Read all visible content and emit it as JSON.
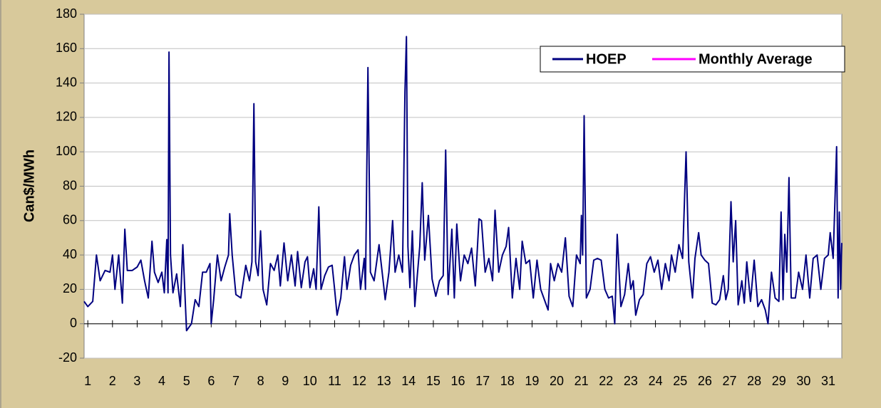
{
  "chart_data": {
    "type": "line",
    "y_label": "Can$/MWh",
    "x": [
      0.85,
      1.0,
      1.2,
      1.35,
      1.5,
      1.7,
      1.9,
      2.0,
      2.1,
      2.25,
      2.4,
      2.5,
      2.6,
      2.8,
      3.0,
      3.15,
      3.3,
      3.45,
      3.6,
      3.7,
      3.85,
      4.0,
      4.1,
      4.2,
      4.25,
      4.29,
      4.35,
      4.45,
      4.6,
      4.75,
      4.85,
      5.0,
      5.2,
      5.35,
      5.5,
      5.65,
      5.8,
      5.95,
      6.0,
      6.1,
      6.25,
      6.4,
      6.55,
      6.7,
      6.75,
      6.85,
      7.0,
      7.2,
      7.4,
      7.55,
      7.65,
      7.73,
      7.8,
      7.9,
      8.0,
      8.1,
      8.25,
      8.4,
      8.55,
      8.7,
      8.8,
      8.95,
      9.1,
      9.25,
      9.4,
      9.5,
      9.65,
      9.8,
      9.9,
      10.0,
      10.15,
      10.25,
      10.36,
      10.45,
      10.6,
      10.75,
      10.9,
      11.0,
      11.1,
      11.25,
      11.4,
      11.5,
      11.65,
      11.8,
      11.95,
      12.05,
      12.2,
      12.25,
      12.35,
      12.45,
      12.6,
      12.8,
      12.95,
      13.05,
      13.2,
      13.35,
      13.45,
      13.6,
      13.75,
      13.85,
      13.91,
      13.97,
      14.05,
      14.15,
      14.25,
      14.35,
      14.45,
      14.55,
      14.65,
      14.8,
      14.95,
      15.1,
      15.25,
      15.4,
      15.5,
      15.6,
      15.75,
      15.85,
      15.95,
      16.1,
      16.25,
      16.4,
      16.55,
      16.7,
      16.85,
      16.95,
      17.1,
      17.25,
      17.4,
      17.5,
      17.65,
      17.8,
      17.95,
      18.05,
      18.2,
      18.35,
      18.5,
      18.6,
      18.75,
      18.9,
      19.05,
      19.2,
      19.35,
      19.5,
      19.65,
      19.75,
      19.9,
      20.05,
      20.2,
      20.35,
      20.5,
      20.65,
      20.8,
      20.95,
      21.0,
      21.05,
      21.11,
      21.2,
      21.35,
      21.5,
      21.65,
      21.8,
      21.95,
      22.1,
      22.25,
      22.35,
      22.45,
      22.6,
      22.75,
      22.9,
      23.0,
      23.1,
      23.2,
      23.35,
      23.5,
      23.65,
      23.8,
      23.95,
      24.1,
      24.25,
      24.4,
      24.55,
      24.65,
      24.8,
      24.95,
      25.1,
      25.24,
      25.35,
      25.5,
      25.6,
      25.75,
      25.85,
      26.0,
      26.15,
      26.3,
      26.45,
      26.6,
      26.75,
      26.85,
      26.95,
      27.06,
      27.15,
      27.25,
      27.35,
      27.5,
      27.6,
      27.7,
      27.85,
      28.0,
      28.15,
      28.3,
      28.45,
      28.56,
      28.7,
      28.85,
      29.0,
      29.09,
      29.17,
      29.24,
      29.32,
      29.41,
      29.5,
      29.67,
      29.8,
      29.96,
      30.1,
      30.25,
      30.39,
      30.55,
      30.7,
      30.85,
      31.0,
      31.08,
      31.2,
      31.34,
      31.4,
      31.45,
      31.5,
      31.55
    ],
    "series": [
      {
        "name": "HOEP",
        "color": "#000080",
        "values": [
          13,
          10,
          13,
          40,
          25,
          31,
          30,
          40,
          20,
          40,
          12,
          55,
          31,
          31,
          33,
          37,
          25,
          15,
          48,
          30,
          24,
          30,
          18,
          49,
          18,
          158,
          40,
          18,
          29,
          10,
          46,
          -4,
          0,
          14,
          10,
          30,
          30,
          35,
          0,
          14,
          40,
          25,
          33,
          40,
          64,
          40,
          17,
          15,
          34,
          25,
          36,
          128,
          36,
          28,
          54,
          20,
          11,
          35,
          31,
          40,
          22,
          47,
          25,
          40,
          22,
          42,
          21,
          36,
          39,
          21,
          32,
          20,
          68,
          20,
          28,
          33,
          34,
          20,
          5,
          15,
          39,
          20,
          34,
          40,
          43,
          20,
          38,
          20,
          149,
          30,
          25,
          46,
          27,
          14,
          30,
          60,
          30,
          40,
          30,
          135,
          167,
          45,
          21,
          54,
          10,
          28,
          45,
          82,
          37,
          63,
          26,
          16,
          25,
          28,
          101,
          17,
          55,
          15,
          58,
          25,
          40,
          35,
          44,
          22,
          61,
          60,
          30,
          38,
          25,
          66,
          30,
          40,
          45,
          56,
          15,
          38,
          20,
          48,
          35,
          37,
          15,
          37,
          20,
          14,
          8,
          35,
          25,
          35,
          30,
          50,
          16,
          10,
          40,
          35,
          63,
          40,
          121,
          15,
          20,
          37,
          38,
          37,
          20,
          15,
          16,
          0,
          52,
          10,
          17,
          35,
          20,
          25,
          5,
          14,
          17,
          35,
          39,
          30,
          37,
          20,
          35,
          25,
          40,
          30,
          46,
          38,
          100,
          36,
          15,
          38,
          53,
          40,
          37,
          35,
          12,
          11,
          14,
          28,
          14,
          20,
          71,
          36,
          60,
          11,
          25,
          12,
          36,
          13,
          37,
          10,
          14,
          8,
          0,
          30,
          15,
          13,
          65,
          14,
          52,
          30,
          85,
          15,
          15,
          30,
          20,
          40,
          15,
          38,
          40,
          20,
          38,
          40,
          53,
          38,
          103,
          15,
          65,
          20,
          47
        ]
      },
      {
        "name": "Monthly Average",
        "color": "#ff00ff"
      }
    ],
    "xlim": [
      0.85,
      31.55
    ],
    "xticks": [
      1,
      2,
      3,
      4,
      5,
      6,
      7,
      8,
      9,
      10,
      11,
      12,
      13,
      14,
      15,
      16,
      17,
      18,
      19,
      20,
      21,
      22,
      23,
      24,
      25,
      26,
      27,
      28,
      29,
      30,
      31
    ],
    "ylim": [
      -20,
      180
    ],
    "yticks": [
      -20,
      0,
      20,
      40,
      60,
      80,
      100,
      120,
      140,
      160,
      180
    ],
    "grid": true,
    "legend": "top-right"
  }
}
